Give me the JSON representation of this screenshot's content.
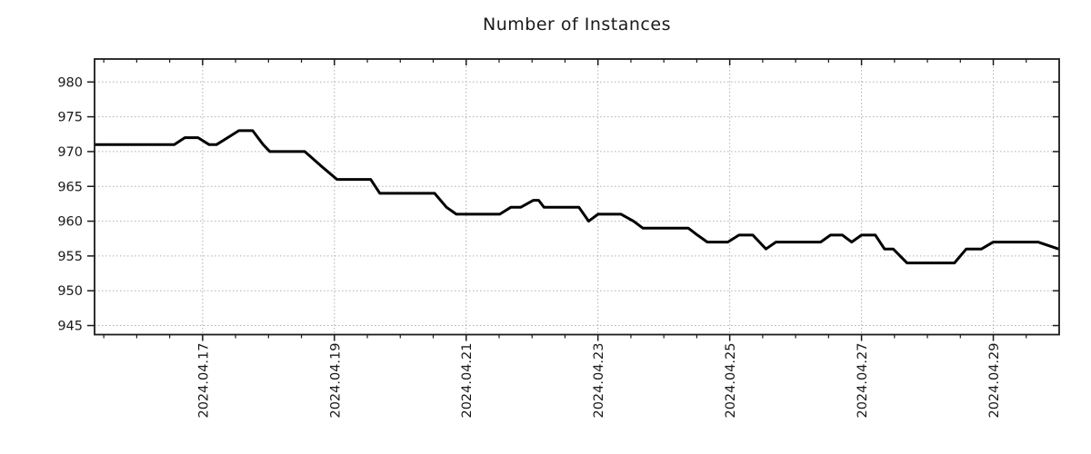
{
  "title": "Number of Instances",
  "colors": {
    "background": "#ffffff",
    "line": "#000000",
    "border": "#1a1a1a",
    "grid": "#b0b0b0",
    "text": "#1a1a1a"
  },
  "chart_data": {
    "type": "line",
    "title": "Number of Instances",
    "xlabel": "",
    "ylabel": "",
    "legend": "none",
    "grid": "dotted-at-major-ticks",
    "x_unit": "days since 2024-04-15 00:00",
    "xlim": [
      0.36,
      15.0
    ],
    "ylim": [
      943.7,
      983.3
    ],
    "y_ticks": [
      945,
      950,
      955,
      960,
      965,
      970,
      975,
      980
    ],
    "x_ticks_major": [
      {
        "pos": 2,
        "label": "2024.04.17"
      },
      {
        "pos": 4,
        "label": "2024.04.19"
      },
      {
        "pos": 6,
        "label": "2024.04.21"
      },
      {
        "pos": 8,
        "label": "2024.04.23"
      },
      {
        "pos": 10,
        "label": "2024.04.25"
      },
      {
        "pos": 12,
        "label": "2024.04.27"
      },
      {
        "pos": 14,
        "label": "2024.04.29"
      }
    ],
    "x_minor_interval": 0.5,
    "series": [
      {
        "name": "instances",
        "color": "#000000",
        "line_width": 3,
        "points": [
          [
            0.36,
            971
          ],
          [
            1.57,
            971
          ],
          [
            1.73,
            972
          ],
          [
            1.93,
            972
          ],
          [
            2.1,
            971
          ],
          [
            2.21,
            971
          ],
          [
            2.55,
            973
          ],
          [
            2.76,
            973
          ],
          [
            2.92,
            971
          ],
          [
            3.02,
            970
          ],
          [
            3.55,
            970
          ],
          [
            3.79,
            968
          ],
          [
            4.04,
            966
          ],
          [
            4.55,
            966
          ],
          [
            4.69,
            964
          ],
          [
            5.52,
            964
          ],
          [
            5.7,
            962
          ],
          [
            5.85,
            961
          ],
          [
            6.51,
            961
          ],
          [
            6.68,
            962
          ],
          [
            6.83,
            962
          ],
          [
            7.02,
            963
          ],
          [
            7.1,
            963
          ],
          [
            7.18,
            962
          ],
          [
            7.71,
            962
          ],
          [
            7.86,
            960
          ],
          [
            8.0,
            961
          ],
          [
            8.35,
            961
          ],
          [
            8.54,
            960
          ],
          [
            8.68,
            959
          ],
          [
            9.37,
            959
          ],
          [
            9.51,
            958
          ],
          [
            9.66,
            957
          ],
          [
            9.97,
            957
          ],
          [
            10.14,
            958
          ],
          [
            10.35,
            958
          ],
          [
            10.55,
            956
          ],
          [
            10.7,
            957
          ],
          [
            11.38,
            957
          ],
          [
            11.53,
            958
          ],
          [
            11.71,
            958
          ],
          [
            11.85,
            957
          ],
          [
            12.0,
            958
          ],
          [
            12.21,
            958
          ],
          [
            12.35,
            956
          ],
          [
            12.48,
            956
          ],
          [
            12.69,
            954
          ],
          [
            13.41,
            954
          ],
          [
            13.59,
            956
          ],
          [
            13.82,
            956
          ],
          [
            14.0,
            957
          ],
          [
            14.68,
            957
          ],
          [
            14.99,
            956
          ]
        ]
      }
    ]
  }
}
